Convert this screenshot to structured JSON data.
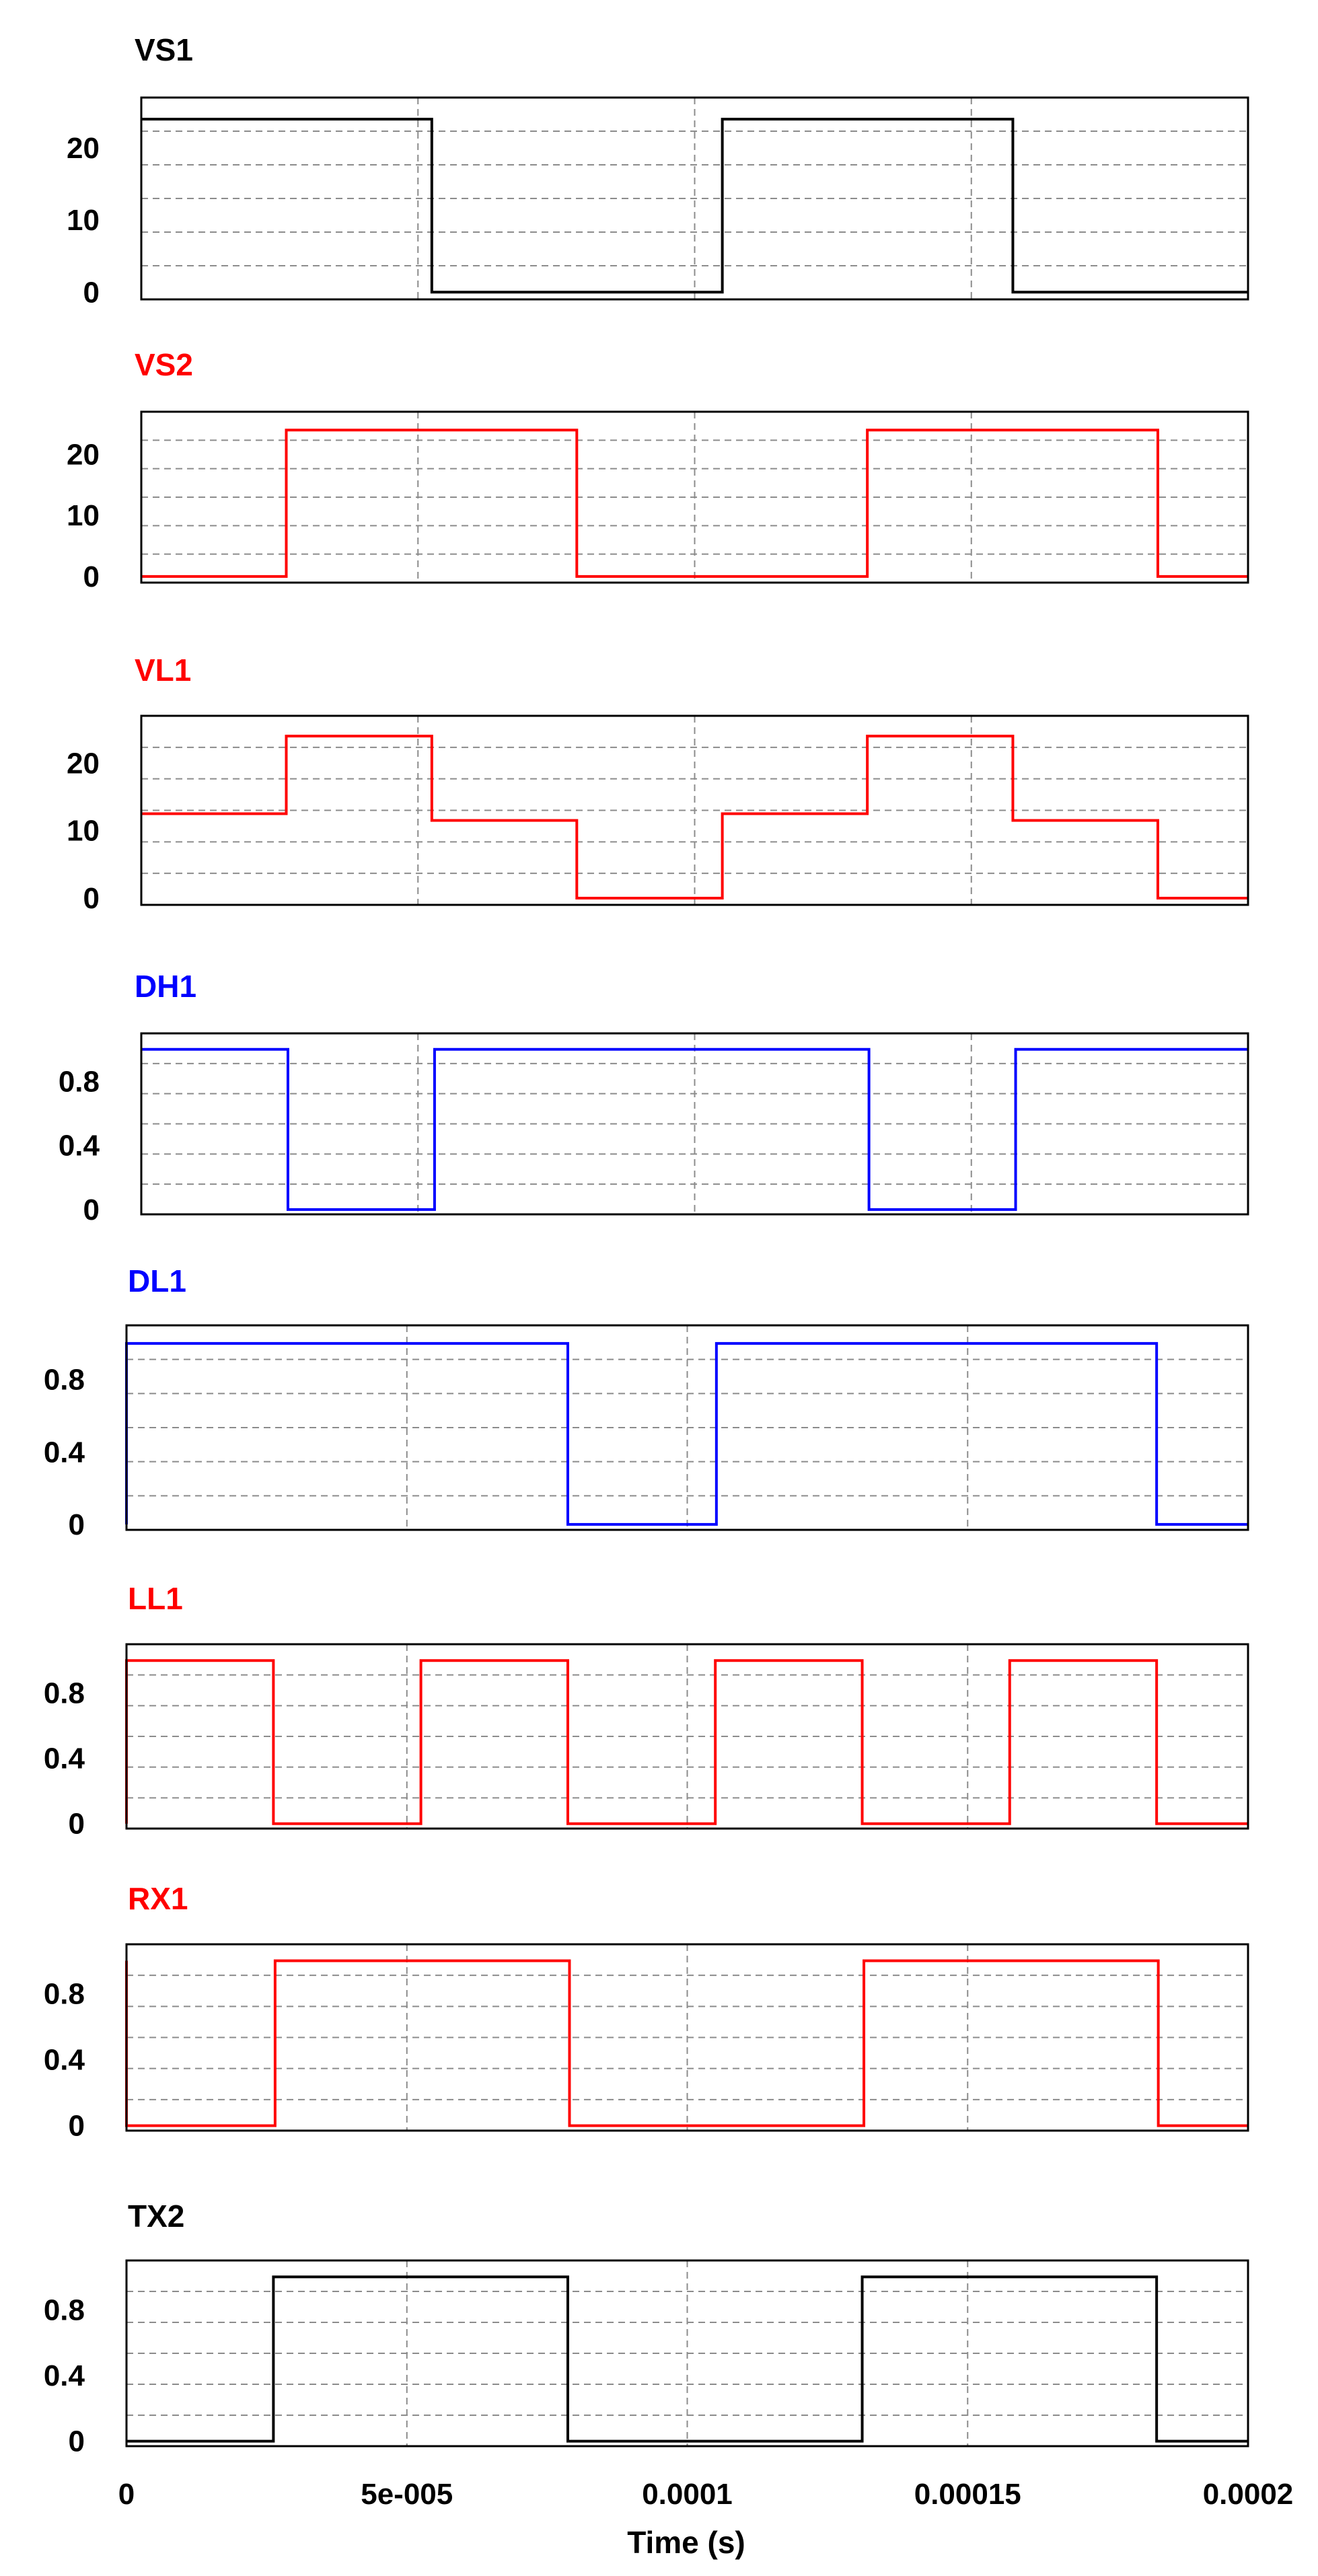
{
  "xlabel": "Time (s)",
  "x_ticks": [
    {
      "value": 0,
      "label": "0"
    },
    {
      "value": 5e-05,
      "label": "5e-005"
    },
    {
      "value": 0.0001,
      "label": "0.0001"
    },
    {
      "value": 0.00015,
      "label": "0.00015"
    },
    {
      "value": 0.0002,
      "label": "0.0002"
    }
  ],
  "chart_data": [
    {
      "type": "line",
      "title": "VS1",
      "color": "#000000",
      "xlim": [
        0,
        0.0002
      ],
      "ylim": [
        -1,
        27
      ],
      "y_ticks": [
        {
          "value": 0,
          "label": "0"
        },
        {
          "value": 10,
          "label": "10"
        },
        {
          "value": 20,
          "label": "20"
        }
      ],
      "grid": true,
      "series": [
        {
          "x": [
            0,
            5.25e-05,
            5.25e-05,
            0.000105,
            0.000105,
            0.0001575,
            0.0001575,
            0.0002
          ],
          "y": [
            24,
            24,
            0,
            0,
            24,
            24,
            0,
            0
          ]
        }
      ]
    },
    {
      "type": "line",
      "title": "VS2",
      "color": "#ff0000",
      "xlim": [
        0,
        0.0002
      ],
      "ylim": [
        -1,
        27
      ],
      "y_ticks": [
        {
          "value": 0,
          "label": "0"
        },
        {
          "value": 10,
          "label": "10"
        },
        {
          "value": 20,
          "label": "20"
        }
      ],
      "grid": true,
      "series": [
        {
          "x": [
            0,
            2.62e-05,
            2.62e-05,
            7.87e-05,
            7.87e-05,
            0.0001312,
            0.0001312,
            0.0001837,
            0.0001837,
            0.0002
          ],
          "y": [
            0,
            0,
            24,
            24,
            0,
            0,
            24,
            24,
            0,
            0
          ]
        }
      ]
    },
    {
      "type": "line",
      "title": "VL1",
      "color": "#ff0000",
      "xlim": [
        0,
        0.0002
      ],
      "ylim": [
        -1,
        27
      ],
      "y_ticks": [
        {
          "value": 0,
          "label": "0"
        },
        {
          "value": 10,
          "label": "10"
        },
        {
          "value": 20,
          "label": "20"
        }
      ],
      "grid": true,
      "series": [
        {
          "x": [
            0,
            2.62e-05,
            2.62e-05,
            5.25e-05,
            5.25e-05,
            7.87e-05,
            7.87e-05,
            0.000105,
            0.000105,
            0.0001312,
            0.0001312,
            0.0001575,
            0.0001575,
            0.0001837,
            0.0001837,
            0.0002
          ],
          "y": [
            12.5,
            12.5,
            24,
            24,
            11.5,
            11.5,
            0,
            0,
            12.5,
            12.5,
            24,
            24,
            11.5,
            11.5,
            0,
            0
          ]
        }
      ]
    },
    {
      "type": "line",
      "title": "DH1",
      "color": "#0000ff",
      "xlim": [
        0,
        0.0002
      ],
      "ylim": [
        -0.03,
        1.1
      ],
      "y_ticks": [
        {
          "value": 0,
          "label": "0"
        },
        {
          "value": 0.4,
          "label": "0.4"
        },
        {
          "value": 0.8,
          "label": "0.8"
        }
      ],
      "grid": true,
      "series": [
        {
          "x": [
            0,
            2.65e-05,
            2.65e-05,
            5.3e-05,
            5.3e-05,
            0.0001315,
            0.0001315,
            0.000158,
            0.000158,
            0.0002
          ],
          "y": [
            1,
            1,
            0,
            0,
            1,
            1,
            0,
            0,
            1,
            1
          ]
        }
      ]
    },
    {
      "type": "line",
      "title": "DL1",
      "color": "#0000ff",
      "xlim": [
        0,
        0.0002
      ],
      "ylim": [
        -0.03,
        1.1
      ],
      "y_ticks": [
        {
          "value": 0,
          "label": "0"
        },
        {
          "value": 0.4,
          "label": "0.4"
        },
        {
          "value": 0.8,
          "label": "0.8"
        }
      ],
      "grid": true,
      "series": [
        {
          "x": [
            0,
            0,
            7.87e-05,
            7.87e-05,
            0.0001052,
            0.0001052,
            0.0001837,
            0.0001837,
            0.0002
          ],
          "y": [
            0,
            1,
            1,
            0,
            0,
            1,
            1,
            0,
            0
          ]
        }
      ]
    },
    {
      "type": "line",
      "title": "LL1",
      "color": "#ff0000",
      "xlim": [
        0,
        0.0002
      ],
      "ylim": [
        -0.03,
        1.1
      ],
      "y_ticks": [
        {
          "value": 0,
          "label": "0"
        },
        {
          "value": 0.4,
          "label": "0.4"
        },
        {
          "value": 0.8,
          "label": "0.8"
        }
      ],
      "grid": true,
      "series": [
        {
          "x": [
            0,
            0,
            2.62e-05,
            2.62e-05,
            5.25e-05,
            5.25e-05,
            7.87e-05,
            7.87e-05,
            0.000105,
            0.000105,
            0.0001312,
            0.0001312,
            0.0001575,
            0.0001575,
            0.0001837,
            0.0001837,
            0.0002
          ],
          "y": [
            0,
            1,
            1,
            0,
            0,
            1,
            1,
            0,
            0,
            1,
            1,
            0,
            0,
            1,
            1,
            0,
            0
          ]
        }
      ]
    },
    {
      "type": "line",
      "title": "RX1",
      "color": "#ff0000",
      "xlim": [
        0,
        0.0002
      ],
      "ylim": [
        -0.03,
        1.1
      ],
      "y_ticks": [
        {
          "value": 0,
          "label": "0"
        },
        {
          "value": 0.4,
          "label": "0.4"
        },
        {
          "value": 0.8,
          "label": "0.8"
        }
      ],
      "grid": true,
      "series": [
        {
          "x": [
            0,
            0,
            2.65e-05,
            2.65e-05,
            7.9e-05,
            7.9e-05,
            0.0001315,
            0.0001315,
            0.000184,
            0.000184,
            0.0002
          ],
          "y": [
            1,
            0,
            0,
            1,
            1,
            0,
            0,
            1,
            1,
            0,
            0
          ]
        }
      ]
    },
    {
      "type": "line",
      "title": "TX2",
      "color": "#000000",
      "xlim": [
        0,
        0.0002
      ],
      "ylim": [
        -0.03,
        1.1
      ],
      "y_ticks": [
        {
          "value": 0,
          "label": "0"
        },
        {
          "value": 0.4,
          "label": "0.4"
        },
        {
          "value": 0.8,
          "label": "0.8"
        }
      ],
      "grid": true,
      "series": [
        {
          "x": [
            0,
            2.62e-05,
            2.62e-05,
            7.87e-05,
            7.87e-05,
            0.0001312,
            0.0001312,
            0.0001837,
            0.0001837,
            0.0002
          ],
          "y": [
            0,
            0,
            1,
            1,
            0,
            0,
            1,
            1,
            0,
            0
          ]
        }
      ]
    }
  ]
}
